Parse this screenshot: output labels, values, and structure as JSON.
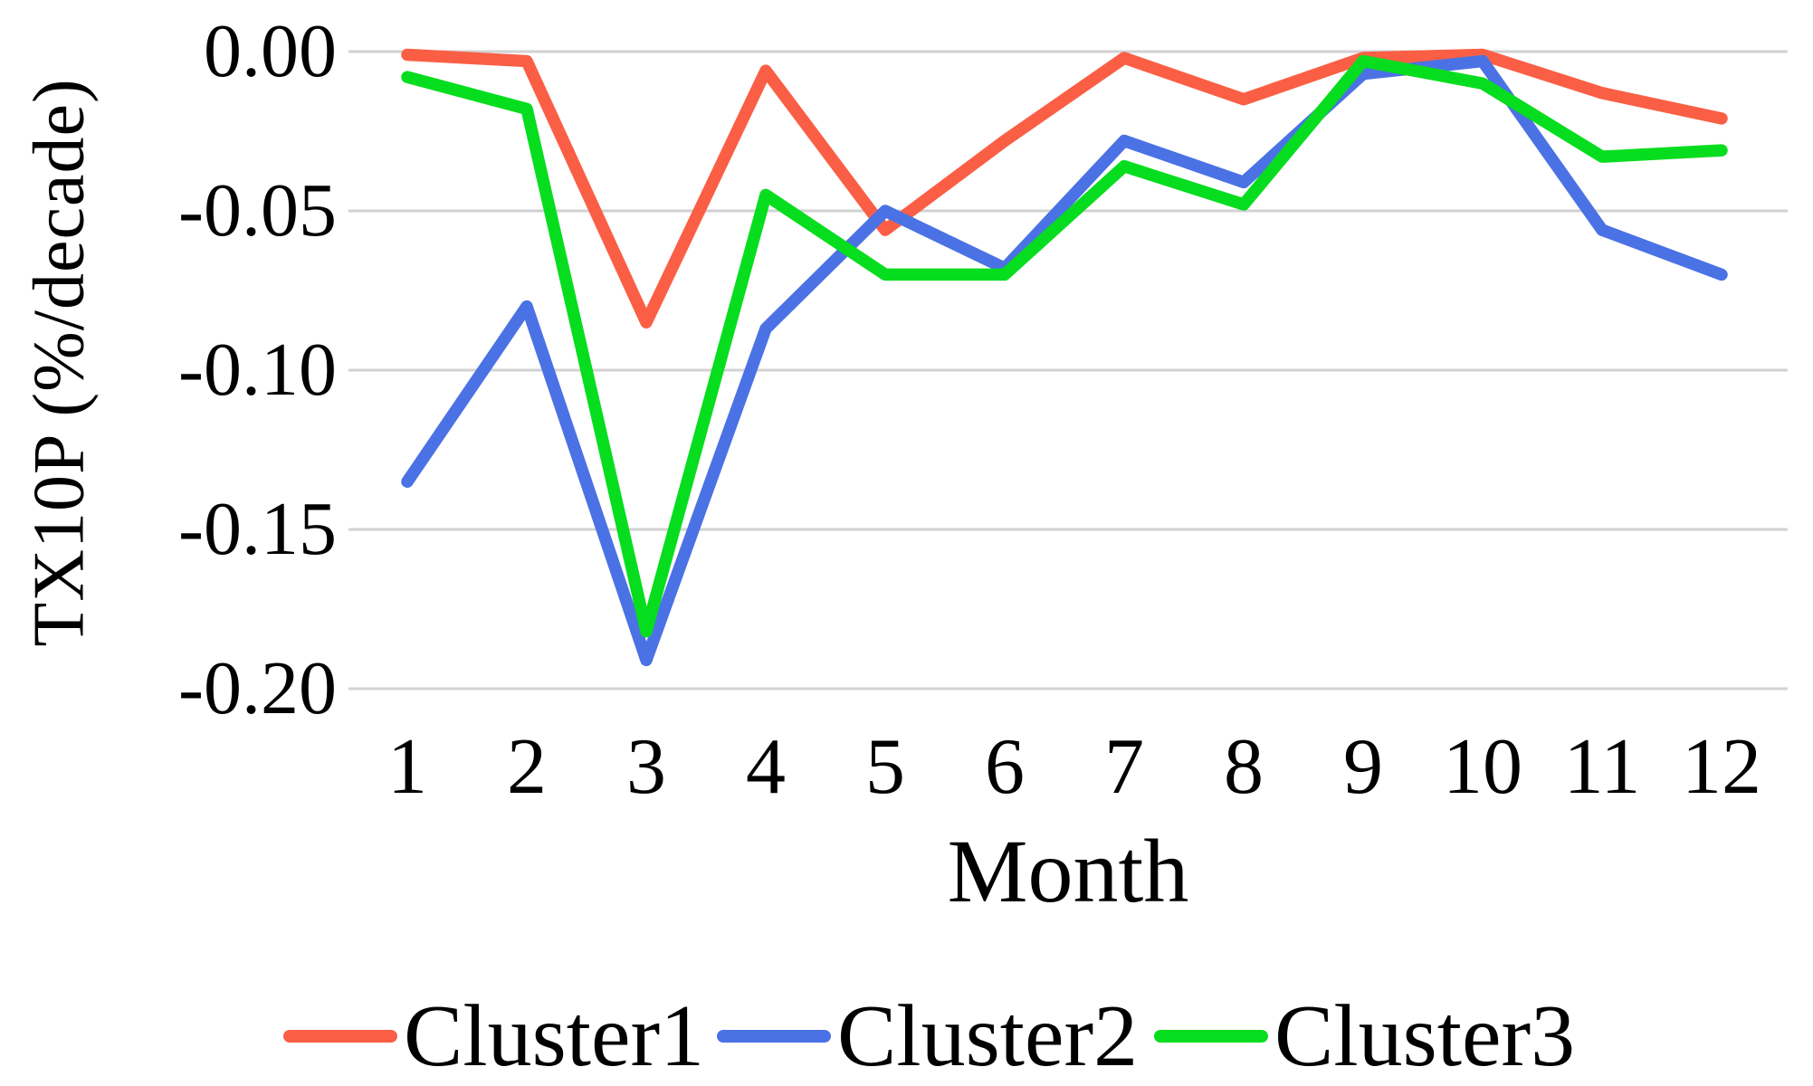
{
  "chart_data": {
    "type": "line",
    "title": "",
    "xlabel": "Month",
    "ylabel": "TX10P (%/decade)",
    "x": [
      1,
      2,
      3,
      4,
      5,
      6,
      7,
      8,
      9,
      10,
      11,
      12
    ],
    "xtick_labels": [
      "1",
      "2",
      "3",
      "4",
      "5",
      "6",
      "7",
      "8",
      "9",
      "10",
      "11",
      "12"
    ],
    "ytick_values": [
      0.0,
      -0.05,
      -0.1,
      -0.15,
      -0.2
    ],
    "ytick_labels": [
      "0.00",
      "-0.05",
      "-0.10",
      "-0.15",
      "-0.20"
    ],
    "ylim": [
      -0.2,
      0.0
    ],
    "grid": "horizontal-only",
    "legend_position": "bottom",
    "background_color": "#FFFFFF",
    "gridline_color": "#D2D2D2",
    "text_color": "#000000",
    "series": [
      {
        "name": "Cluster1",
        "color": "#FA5F45",
        "values": [
          -0.001,
          -0.003,
          -0.085,
          -0.006,
          -0.056,
          -0.028,
          -0.002,
          -0.015,
          -0.002,
          -0.001,
          -0.013,
          -0.021
        ]
      },
      {
        "name": "Cluster2",
        "color": "#4B72E4",
        "values": [
          -0.135,
          -0.08,
          -0.191,
          -0.087,
          -0.05,
          -0.068,
          -0.028,
          -0.041,
          -0.007,
          -0.003,
          -0.056,
          -0.07
        ]
      },
      {
        "name": "Cluster3",
        "color": "#06DD1E",
        "values": [
          -0.008,
          -0.018,
          -0.182,
          -0.045,
          -0.07,
          -0.07,
          -0.036,
          -0.048,
          -0.003,
          -0.01,
          -0.033,
          -0.031
        ]
      }
    ]
  }
}
